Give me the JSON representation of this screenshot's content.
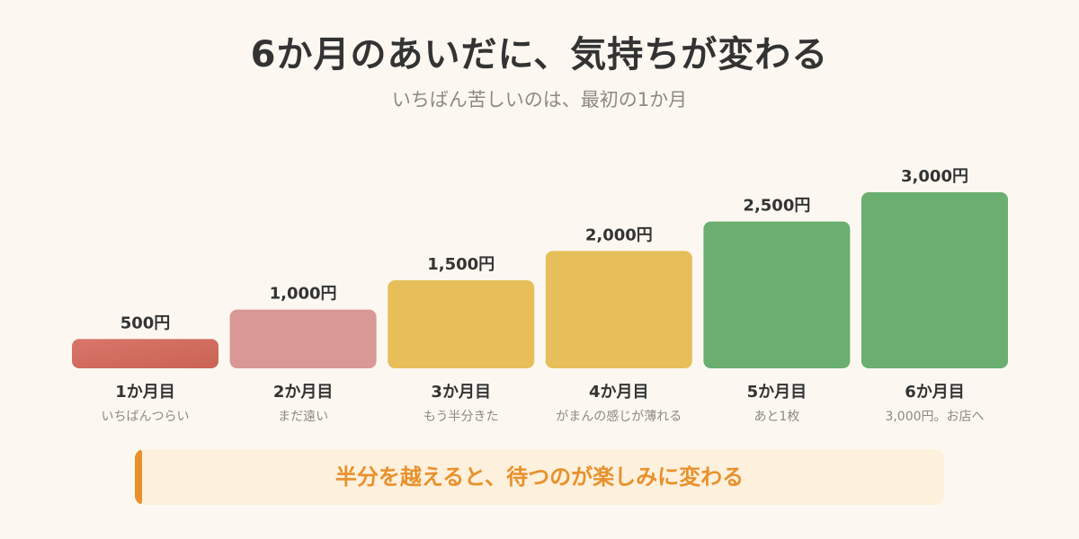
{
  "header": {
    "title": "6か月のあいだに、気持ちが変わる",
    "subtitle": "いちばん苦しいのは、最初の1か月"
  },
  "chart_data": {
    "type": "bar",
    "unit": "円",
    "ylim": [
      0,
      3000
    ],
    "grid": false,
    "categories": [
      "1か月目",
      "2か月目",
      "3か月目",
      "4か月目",
      "5か月目",
      "6か月目"
    ],
    "descriptions": [
      "いちばんつらい",
      "まだ遠い",
      "もう半分きた",
      "がまんの感じが薄れる",
      "あと1枚",
      "3,000円。お店へ"
    ],
    "values": [
      500,
      1000,
      1500,
      2000,
      2500,
      3000
    ],
    "value_labels": [
      "500円",
      "1,000円",
      "1,500円",
      "2,000円",
      "2,500円",
      "3,000円"
    ],
    "colors": [
      "#d26b5e",
      "#d99795",
      "#e6bf5a",
      "#e6bf5a",
      "#6aae70",
      "#6aae70"
    ]
  },
  "callout": {
    "text": "半分を越えると、待つのが楽しみに変わる",
    "accent": "#e8912c"
  }
}
